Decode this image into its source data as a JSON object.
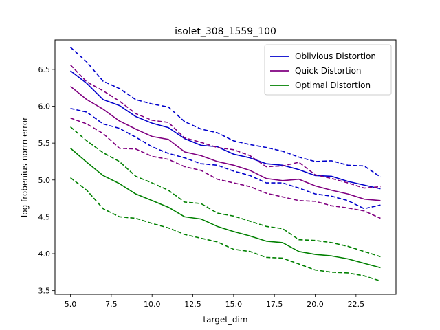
{
  "chart_data": {
    "type": "line",
    "title": "isolet_308_1559_100",
    "xlabel": "target_dim",
    "ylabel": "log frobenius norm error",
    "xlim": [
      4.05,
      24.95
    ],
    "ylim": [
      3.45,
      6.9
    ],
    "xticks": [
      5.0,
      7.5,
      10.0,
      12.5,
      15.0,
      17.5,
      20.0,
      22.5
    ],
    "xtick_labels": [
      "5.0",
      "7.5",
      "10.0",
      "12.5",
      "15.0",
      "17.5",
      "20.0",
      "22.5"
    ],
    "yticks": [
      3.5,
      4.0,
      4.5,
      5.0,
      5.5,
      6.0,
      6.5
    ],
    "ytick_labels": [
      "3.5",
      "4.0",
      "4.5",
      "5.0",
      "5.5",
      "6.0",
      "6.5"
    ],
    "grid": false,
    "legend_position": "upper-right",
    "x": [
      5,
      6,
      7,
      8,
      9,
      10,
      11,
      12,
      13,
      14,
      15,
      16,
      17,
      18,
      19,
      20,
      21,
      22,
      23,
      24
    ],
    "series": [
      {
        "name": "Oblivious Distortion",
        "color": "#0000cc",
        "style": "solid",
        "values": [
          6.48,
          6.31,
          6.09,
          6.01,
          5.86,
          5.77,
          5.71,
          5.56,
          5.47,
          5.45,
          5.35,
          5.3,
          5.22,
          5.2,
          5.14,
          5.06,
          5.05,
          4.98,
          4.93,
          4.88
        ]
      },
      {
        "name": "",
        "color": "#0000cc",
        "style": "dashed",
        "values": [
          6.8,
          6.6,
          6.34,
          6.24,
          6.09,
          6.03,
          5.99,
          5.79,
          5.69,
          5.64,
          5.53,
          5.48,
          5.44,
          5.39,
          5.31,
          5.25,
          5.26,
          5.2,
          5.19,
          5.04
        ]
      },
      {
        "name": "",
        "color": "#0000cc",
        "style": "dashed",
        "values": [
          5.97,
          5.92,
          5.76,
          5.7,
          5.58,
          5.45,
          5.36,
          5.3,
          5.22,
          5.2,
          5.12,
          5.06,
          4.96,
          4.96,
          4.89,
          4.81,
          4.78,
          4.72,
          4.61,
          4.66
        ]
      },
      {
        "name": "Quick Distortion",
        "color": "#800080",
        "style": "solid",
        "values": [
          6.27,
          6.09,
          5.96,
          5.8,
          5.69,
          5.59,
          5.55,
          5.38,
          5.33,
          5.25,
          5.2,
          5.13,
          5.02,
          4.99,
          5.01,
          4.92,
          4.86,
          4.81,
          4.74,
          4.72
        ]
      },
      {
        "name": "",
        "color": "#800080",
        "style": "dashed",
        "values": [
          6.56,
          6.33,
          6.21,
          6.07,
          5.9,
          5.81,
          5.78,
          5.57,
          5.51,
          5.44,
          5.41,
          5.33,
          5.18,
          5.19,
          5.24,
          5.07,
          5.02,
          4.96,
          4.89,
          4.91
        ]
      },
      {
        "name": "",
        "color": "#800080",
        "style": "dashed",
        "values": [
          5.84,
          5.76,
          5.63,
          5.43,
          5.42,
          5.32,
          5.28,
          5.18,
          5.13,
          5.01,
          4.96,
          4.91,
          4.82,
          4.77,
          4.72,
          4.71,
          4.65,
          4.62,
          4.58,
          4.48
        ]
      },
      {
        "name": "Optimal Distortion",
        "color": "#008000",
        "style": "solid",
        "values": [
          5.43,
          5.24,
          5.06,
          4.95,
          4.81,
          4.72,
          4.63,
          4.5,
          4.47,
          4.37,
          4.3,
          4.24,
          4.17,
          4.15,
          4.03,
          3.99,
          3.97,
          3.93,
          3.87,
          3.81
        ]
      },
      {
        "name": "",
        "color": "#008000",
        "style": "dashed",
        "values": [
          5.72,
          5.53,
          5.37,
          5.25,
          5.05,
          4.96,
          4.86,
          4.7,
          4.68,
          4.55,
          4.51,
          4.44,
          4.37,
          4.34,
          4.19,
          4.18,
          4.15,
          4.1,
          4.03,
          3.96
        ]
      },
      {
        "name": "",
        "color": "#008000",
        "style": "dashed",
        "values": [
          5.03,
          4.86,
          4.61,
          4.5,
          4.48,
          4.41,
          4.35,
          4.26,
          4.21,
          4.16,
          4.06,
          4.03,
          3.95,
          3.94,
          3.86,
          3.78,
          3.75,
          3.74,
          3.7,
          3.63
        ]
      }
    ]
  }
}
